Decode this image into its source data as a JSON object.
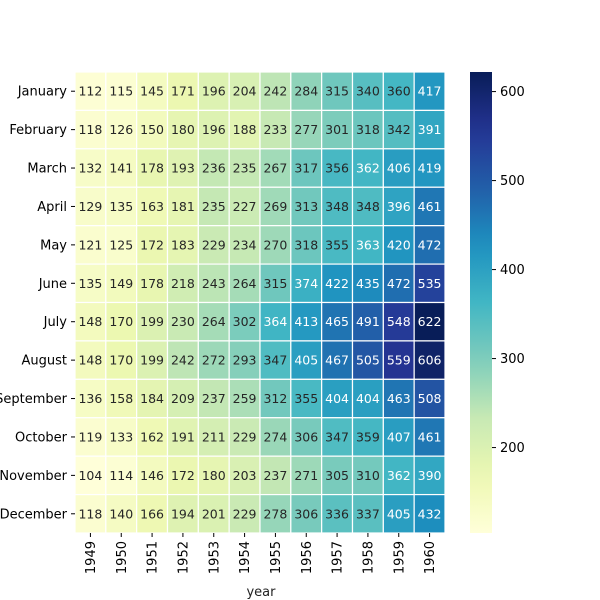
{
  "chart_data": {
    "type": "heatmap",
    "title": "",
    "xlabel": "year",
    "ylabel": "",
    "x_categories": [
      "1949",
      "1950",
      "1951",
      "1952",
      "1953",
      "1954",
      "1955",
      "1956",
      "1957",
      "1958",
      "1959",
      "1960"
    ],
    "y_categories": [
      "January",
      "February",
      "March",
      "April",
      "May",
      "June",
      "July",
      "August",
      "September",
      "October",
      "November",
      "December"
    ],
    "values": [
      [
        112,
        115,
        145,
        171,
        196,
        204,
        242,
        284,
        315,
        340,
        360,
        417
      ],
      [
        118,
        126,
        150,
        180,
        196,
        188,
        233,
        277,
        301,
        318,
        342,
        391
      ],
      [
        132,
        141,
        178,
        193,
        236,
        235,
        267,
        317,
        356,
        362,
        406,
        419
      ],
      [
        129,
        135,
        163,
        181,
        235,
        227,
        269,
        313,
        348,
        348,
        396,
        461
      ],
      [
        121,
        125,
        172,
        183,
        229,
        234,
        270,
        318,
        355,
        363,
        420,
        472
      ],
      [
        135,
        149,
        178,
        218,
        243,
        264,
        315,
        374,
        422,
        435,
        472,
        535
      ],
      [
        148,
        170,
        199,
        230,
        264,
        302,
        364,
        413,
        465,
        491,
        548,
        622
      ],
      [
        148,
        170,
        199,
        242,
        272,
        293,
        347,
        405,
        467,
        505,
        559,
        606
      ],
      [
        136,
        158,
        184,
        209,
        237,
        259,
        312,
        355,
        404,
        404,
        463,
        508
      ],
      [
        119,
        133,
        162,
        191,
        211,
        229,
        274,
        306,
        347,
        359,
        407,
        461
      ],
      [
        104,
        114,
        146,
        172,
        180,
        203,
        237,
        271,
        305,
        310,
        362,
        390
      ],
      [
        118,
        140,
        166,
        194,
        201,
        229,
        278,
        306,
        336,
        337,
        405,
        432
      ]
    ],
    "colorbar": {
      "colormap": "YlGnBu",
      "range": [
        104,
        622
      ],
      "ticks": [
        "200",
        "300",
        "400",
        "500",
        "600"
      ]
    },
    "annotations": true,
    "cell_line_color": "#ffffff"
  }
}
